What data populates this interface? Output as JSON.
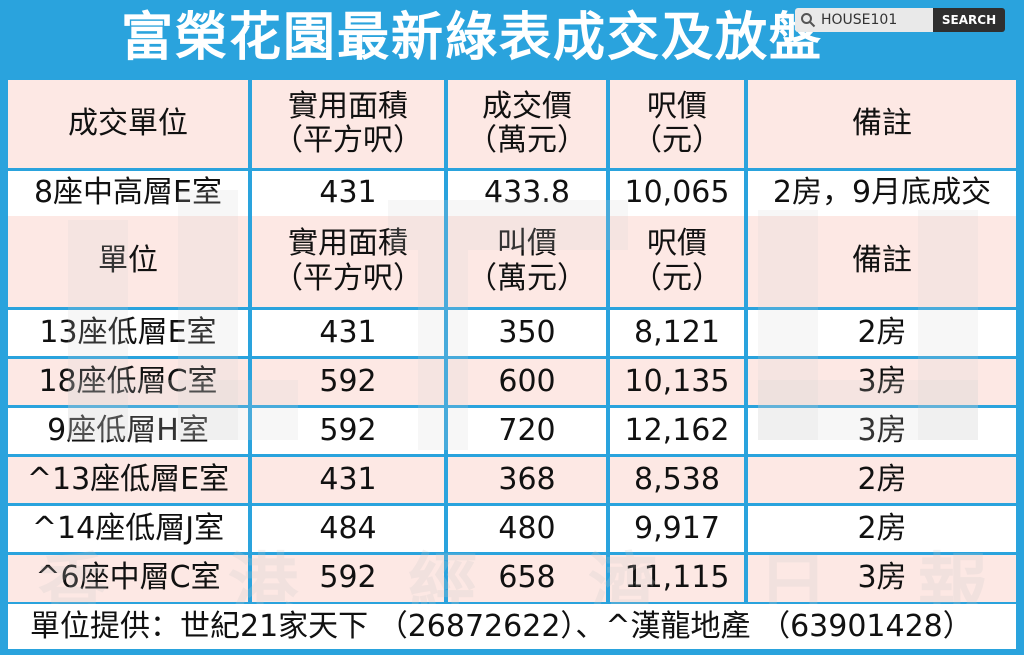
{
  "title": "富榮花園最新綠表成交及放盤",
  "search": {
    "placeholder": "HOUSE101",
    "button": "SEARCH"
  },
  "transaction_header": {
    "unit": "成交單位",
    "area": [
      "實用面積",
      "（平方呎）"
    ],
    "price": [
      "成交價",
      "（萬元）"
    ],
    "psf": [
      "呎價",
      "（元）"
    ],
    "remark": "備註"
  },
  "transaction_row": {
    "unit": "8座中高層E室",
    "area": "431",
    "price": "433.8",
    "psf": "10,065",
    "remark": "2房，9月底成交"
  },
  "listing_header": {
    "unit": "單位",
    "area": [
      "實用面積",
      "（平方呎）"
    ],
    "price": [
      "叫價",
      "（萬元）"
    ],
    "psf": [
      "呎價",
      "（元）"
    ],
    "remark": "備註"
  },
  "listing_rows": [
    {
      "unit": "13座低層E室",
      "area": "431",
      "price": "350",
      "psf": "8,121",
      "remark": "2房"
    },
    {
      "unit": "18座低層C室",
      "area": "592",
      "price": "600",
      "psf": "10,135",
      "remark": "3房"
    },
    {
      "unit": "9座低層H室",
      "area": "592",
      "price": "720",
      "psf": "12,162",
      "remark": "3房"
    },
    {
      "unit": "^13座低層E室",
      "area": "431",
      "price": "368",
      "psf": "8,538",
      "remark": "2房"
    },
    {
      "unit": "^14座低層J室",
      "area": "484",
      "price": "480",
      "psf": "9,917",
      "remark": "2房"
    },
    {
      "unit": "^6座中層C室",
      "area": "592",
      "price": "658",
      "psf": "11,115",
      "remark": "3房"
    }
  ],
  "footer": "單位提供：世紀21家天下 （26872622）、^漢龍地產 （63901428）",
  "watermark": [
    "香",
    "港",
    "經",
    "濟",
    "日",
    "報"
  ]
}
